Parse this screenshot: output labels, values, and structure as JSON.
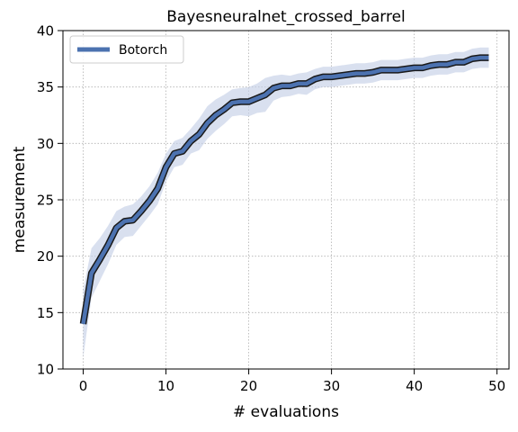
{
  "chart_data": {
    "type": "line",
    "title": "Bayesneuralnet_crossed_barrel",
    "xlabel": "# evaluations",
    "ylabel": "measurement",
    "xlim": [
      -2.45,
      51.45
    ],
    "ylim": [
      10,
      40
    ],
    "xticks": [
      0,
      10,
      20,
      30,
      40,
      50
    ],
    "yticks": [
      10,
      15,
      20,
      25,
      30,
      35,
      40
    ],
    "grid": true,
    "legend_position": "upper-left",
    "series": [
      {
        "name": "Botorch",
        "color": "#4c72b0",
        "band_color": "#c5d0e6",
        "x": [
          0,
          1,
          2,
          3,
          4,
          5,
          6,
          7,
          8,
          9,
          10,
          11,
          12,
          13,
          14,
          15,
          16,
          17,
          18,
          19,
          20,
          21,
          22,
          23,
          24,
          25,
          26,
          27,
          28,
          29,
          30,
          31,
          32,
          33,
          34,
          35,
          36,
          37,
          38,
          39,
          40,
          41,
          42,
          43,
          44,
          45,
          46,
          47,
          48,
          49
        ],
        "mean": [
          14.0,
          18.5,
          19.7,
          21.0,
          22.5,
          23.1,
          23.2,
          24.0,
          24.9,
          26.0,
          27.9,
          29.1,
          29.3,
          30.2,
          30.8,
          31.8,
          32.5,
          33.0,
          33.6,
          33.7,
          33.7,
          34.0,
          34.3,
          34.9,
          35.1,
          35.1,
          35.3,
          35.3,
          35.7,
          35.9,
          35.9,
          36.0,
          36.1,
          36.2,
          36.2,
          36.3,
          36.5,
          36.5,
          36.5,
          36.6,
          36.7,
          36.7,
          36.9,
          37.0,
          37.0,
          37.2,
          37.2,
          37.5,
          37.6,
          37.6
        ],
        "upper": [
          17.0,
          20.7,
          21.6,
          22.7,
          24.0,
          24.4,
          24.6,
          25.3,
          26.2,
          27.4,
          29.1,
          30.2,
          30.5,
          31.3,
          32.2,
          33.3,
          33.9,
          34.3,
          34.8,
          34.9,
          35.0,
          35.3,
          35.8,
          36.0,
          36.1,
          36.0,
          36.2,
          36.3,
          36.6,
          36.8,
          36.8,
          36.9,
          37.0,
          37.1,
          37.1,
          37.2,
          37.4,
          37.4,
          37.4,
          37.5,
          37.6,
          37.6,
          37.8,
          37.9,
          37.9,
          38.1,
          38.1,
          38.4,
          38.5,
          38.5
        ],
        "lower": [
          11.0,
          16.3,
          17.8,
          19.3,
          21.0,
          21.7,
          21.8,
          22.7,
          23.6,
          24.6,
          26.6,
          27.9,
          28.1,
          29.1,
          29.4,
          30.4,
          31.1,
          31.7,
          32.4,
          32.5,
          32.4,
          32.7,
          32.8,
          33.8,
          34.1,
          34.2,
          34.4,
          34.3,
          34.8,
          35.0,
          35.0,
          35.1,
          35.2,
          35.3,
          35.3,
          35.4,
          35.6,
          35.6,
          35.6,
          35.7,
          35.8,
          35.8,
          36.0,
          36.1,
          36.1,
          36.3,
          36.3,
          36.6,
          36.7,
          36.7
        ]
      }
    ]
  }
}
